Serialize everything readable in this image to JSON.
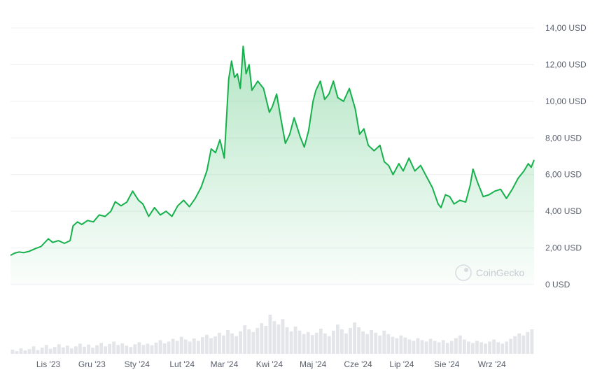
{
  "watermark": "CoinGecko",
  "colors": {
    "line": "#16b14c",
    "fill_top": "#16b14c",
    "grid": "#eef0f3",
    "volume": "#e3e5e8"
  },
  "chart_data": {
    "type": "area",
    "ylim": [
      0,
      14
    ],
    "yticks": [
      {
        "value": 14,
        "label": "14,00 USD"
      },
      {
        "value": 12,
        "label": "12,00 USD"
      },
      {
        "value": 10,
        "label": "10,00 USD"
      },
      {
        "value": 8,
        "label": "8,00 USD"
      },
      {
        "value": 6,
        "label": "6,00 USD"
      },
      {
        "value": 4,
        "label": "4,00 USD"
      },
      {
        "value": 2,
        "label": "2,00 USD"
      },
      {
        "value": 0,
        "label": "0 USD"
      }
    ],
    "xlim": [
      "2023-10-06",
      "2024-09-30"
    ],
    "xticks": [
      {
        "date": "2023-11-01",
        "label": "Lis '23"
      },
      {
        "date": "2023-12-01",
        "label": "Gru '23"
      },
      {
        "date": "2024-01-01",
        "label": "Sty '24"
      },
      {
        "date": "2024-02-01",
        "label": "Lut '24"
      },
      {
        "date": "2024-03-01",
        "label": "Mar '24"
      },
      {
        "date": "2024-04-01",
        "label": "Kwi '24"
      },
      {
        "date": "2024-05-01",
        "label": "Maj '24"
      },
      {
        "date": "2024-06-01",
        "label": "Cze '24"
      },
      {
        "date": "2024-07-01",
        "label": "Lip '24"
      },
      {
        "date": "2024-08-01",
        "label": "Sie '24"
      },
      {
        "date": "2024-09-01",
        "label": "Wrz '24"
      }
    ],
    "series": [
      {
        "points": [
          [
            "2023-10-06",
            1.6
          ],
          [
            "2023-10-09",
            1.72
          ],
          [
            "2023-10-12",
            1.78
          ],
          [
            "2023-10-15",
            1.74
          ],
          [
            "2023-10-19",
            1.82
          ],
          [
            "2023-10-23",
            1.96
          ],
          [
            "2023-10-27",
            2.08
          ],
          [
            "2023-11-01",
            2.5
          ],
          [
            "2023-11-04",
            2.3
          ],
          [
            "2023-11-08",
            2.4
          ],
          [
            "2023-11-12",
            2.25
          ],
          [
            "2023-11-16",
            2.4
          ],
          [
            "2023-11-18",
            3.2
          ],
          [
            "2023-11-21",
            3.42
          ],
          [
            "2023-11-24",
            3.28
          ],
          [
            "2023-11-28",
            3.5
          ],
          [
            "2023-12-02",
            3.42
          ],
          [
            "2023-12-06",
            3.8
          ],
          [
            "2023-12-10",
            3.72
          ],
          [
            "2023-12-14",
            4.0
          ],
          [
            "2023-12-17",
            4.52
          ],
          [
            "2023-12-21",
            4.3
          ],
          [
            "2023-12-25",
            4.5
          ],
          [
            "2023-12-29",
            5.1
          ],
          [
            "2024-01-02",
            4.6
          ],
          [
            "2024-01-05",
            4.4
          ],
          [
            "2024-01-09",
            3.72
          ],
          [
            "2024-01-13",
            4.2
          ],
          [
            "2024-01-17",
            3.8
          ],
          [
            "2024-01-21",
            4.0
          ],
          [
            "2024-01-25",
            3.72
          ],
          [
            "2024-01-29",
            4.3
          ],
          [
            "2024-02-02",
            4.6
          ],
          [
            "2024-02-06",
            4.25
          ],
          [
            "2024-02-10",
            4.7
          ],
          [
            "2024-02-14",
            5.3
          ],
          [
            "2024-02-18",
            6.2
          ],
          [
            "2024-02-21",
            7.4
          ],
          [
            "2024-02-24",
            7.2
          ],
          [
            "2024-02-27",
            7.9
          ],
          [
            "2024-03-01",
            6.9
          ],
          [
            "2024-03-04",
            11.2
          ],
          [
            "2024-03-06",
            12.2
          ],
          [
            "2024-03-08",
            11.3
          ],
          [
            "2024-03-10",
            11.5
          ],
          [
            "2024-03-12",
            10.7
          ],
          [
            "2024-03-14",
            13.0
          ],
          [
            "2024-03-16",
            11.5
          ],
          [
            "2024-03-18",
            12.0
          ],
          [
            "2024-03-20",
            10.6
          ],
          [
            "2024-03-24",
            11.1
          ],
          [
            "2024-03-28",
            10.7
          ],
          [
            "2024-04-01",
            9.4
          ],
          [
            "2024-04-03",
            9.7
          ],
          [
            "2024-04-06",
            10.4
          ],
          [
            "2024-04-09",
            9.0
          ],
          [
            "2024-04-12",
            7.7
          ],
          [
            "2024-04-15",
            8.2
          ],
          [
            "2024-04-18",
            9.1
          ],
          [
            "2024-04-22",
            8.1
          ],
          [
            "2024-04-25",
            7.5
          ],
          [
            "2024-04-28",
            8.4
          ],
          [
            "2024-05-01",
            10.0
          ],
          [
            "2024-05-03",
            10.6
          ],
          [
            "2024-05-06",
            11.1
          ],
          [
            "2024-05-09",
            10.1
          ],
          [
            "2024-05-12",
            10.4
          ],
          [
            "2024-05-15",
            11.1
          ],
          [
            "2024-05-18",
            10.2
          ],
          [
            "2024-05-22",
            10.0
          ],
          [
            "2024-05-26",
            10.7
          ],
          [
            "2024-05-30",
            9.6
          ],
          [
            "2024-06-02",
            8.2
          ],
          [
            "2024-06-05",
            8.5
          ],
          [
            "2024-06-08",
            7.6
          ],
          [
            "2024-06-12",
            7.3
          ],
          [
            "2024-06-16",
            7.6
          ],
          [
            "2024-06-19",
            6.7
          ],
          [
            "2024-06-22",
            6.5
          ],
          [
            "2024-06-25",
            6.0
          ],
          [
            "2024-06-29",
            6.6
          ],
          [
            "2024-07-02",
            6.2
          ],
          [
            "2024-07-06",
            6.9
          ],
          [
            "2024-07-10",
            6.2
          ],
          [
            "2024-07-14",
            6.5
          ],
          [
            "2024-07-18",
            5.9
          ],
          [
            "2024-07-22",
            5.3
          ],
          [
            "2024-07-26",
            4.4
          ],
          [
            "2024-07-28",
            4.2
          ],
          [
            "2024-07-31",
            4.9
          ],
          [
            "2024-08-03",
            4.8
          ],
          [
            "2024-08-06",
            4.4
          ],
          [
            "2024-08-10",
            4.6
          ],
          [
            "2024-08-14",
            4.5
          ],
          [
            "2024-08-17",
            5.4
          ],
          [
            "2024-08-19",
            6.3
          ],
          [
            "2024-08-22",
            5.6
          ],
          [
            "2024-08-26",
            4.8
          ],
          [
            "2024-08-30",
            4.9
          ],
          [
            "2024-09-03",
            5.1
          ],
          [
            "2024-09-07",
            5.2
          ],
          [
            "2024-09-11",
            4.7
          ],
          [
            "2024-09-15",
            5.2
          ],
          [
            "2024-09-19",
            5.8
          ],
          [
            "2024-09-23",
            6.2
          ],
          [
            "2024-09-26",
            6.6
          ],
          [
            "2024-09-28",
            6.4
          ],
          [
            "2024-09-30",
            6.8
          ]
        ]
      }
    ],
    "volume": [
      1.2,
      0.8,
      1.6,
      1.0,
      1.4,
      2.2,
      1.1,
      1.8,
      2.6,
      1.5,
      2.0,
      2.8,
      1.9,
      2.4,
      1.6,
      2.2,
      3.0,
      2.1,
      2.7,
      1.8,
      2.5,
      3.2,
      2.2,
      2.9,
      3.6,
      2.6,
      3.1,
      2.4,
      2.0,
      2.8,
      3.4,
      2.6,
      3.0,
      2.5,
      3.3,
      4.0,
      3.1,
      3.6,
      4.4,
      3.8,
      5.0,
      4.2,
      3.6,
      4.5,
      3.8,
      4.9,
      5.6,
      4.6,
      5.1,
      6.2,
      5.4,
      7.0,
      6.0,
      5.2,
      6.6,
      8.4,
      7.2,
      6.4,
      7.6,
      9.0,
      8.2,
      11.5,
      9.6,
      8.6,
      10.2,
      7.8,
      6.6,
      8.0,
      6.8,
      5.8,
      6.4,
      5.5,
      6.2,
      7.4,
      6.0,
      5.2,
      6.8,
      8.6,
      7.2,
      6.0,
      7.6,
      9.2,
      7.8,
      6.6,
      5.8,
      7.0,
      6.2,
      5.4,
      6.8,
      5.8,
      5.0,
      4.6,
      5.4,
      4.8,
      4.2,
      3.8,
      4.6,
      4.0,
      3.6,
      4.4,
      3.8,
      3.4,
      4.0,
      3.2,
      3.8,
      4.6,
      5.4,
      4.2,
      3.6,
      3.2,
      3.8,
      3.4,
      3.0,
      3.6,
      4.2,
      3.4,
      3.0,
      3.6,
      4.4,
      5.2,
      6.0,
      5.4,
      6.4,
      7.2
    ]
  }
}
